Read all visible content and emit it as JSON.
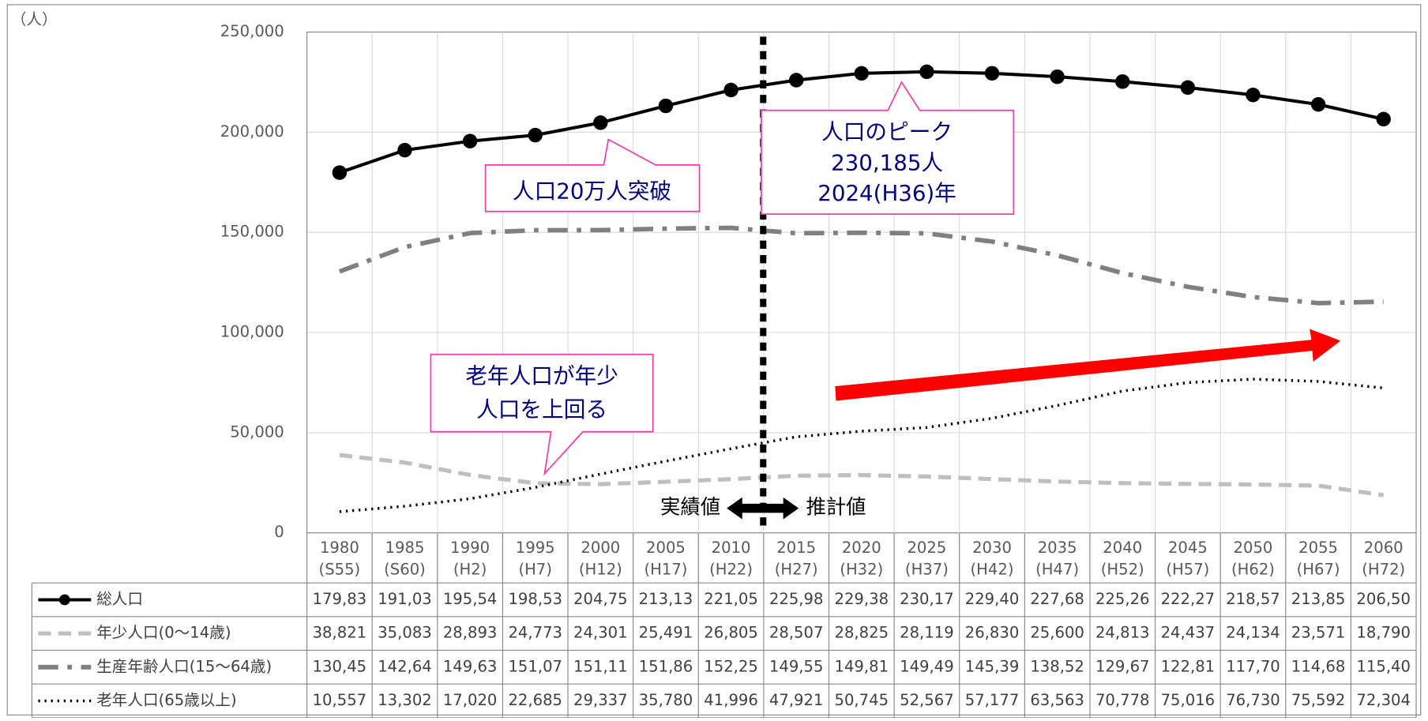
{
  "chart_data": {
    "type": "line",
    "y_unit": "（人）",
    "categories": [
      "1980",
      "1985",
      "1990",
      "1995",
      "2000",
      "2005",
      "2010",
      "2015",
      "2020",
      "2025",
      "2030",
      "2035",
      "2040",
      "2045",
      "2050",
      "2055",
      "2060"
    ],
    "category_subs": [
      "(S55)",
      "(S60)",
      "(H2)",
      "(H7)",
      "(H12)",
      "(H17)",
      "(H22)",
      "(H27)",
      "(H32)",
      "(H37)",
      "(H42)",
      "(H47)",
      "(H52)",
      "(H57)",
      "(H62)",
      "(H67)",
      "(H72)"
    ],
    "ylim": [
      0,
      250000
    ],
    "yticks": [
      0,
      {
        "value": 50000,
        "label": "50,000"
      },
      {
        "value": 100000,
        "label": "100,000"
      },
      {
        "value": 150000,
        "label": "150,000"
      },
      {
        "value": 200000,
        "label": "200,000"
      },
      {
        "value": 250000,
        "label": "250,000"
      }
    ],
    "grid": true,
    "series": [
      {
        "name": "総人口",
        "color": "#000000",
        "style": "solid-marker",
        "values": [
          179830,
          191030,
          195540,
          198530,
          204750,
          213130,
          221050,
          225980,
          229380,
          230170,
          229400,
          227680,
          225260,
          222270,
          218570,
          213850,
          206500
        ],
        "value_labels": [
          "179,83",
          "191,03",
          "195,54",
          "198,53",
          "204,75",
          "213,13",
          "221,05",
          "225,98",
          "229,38",
          "230,17",
          "229,40",
          "227,68",
          "225,26",
          "222,27",
          "218,57",
          "213,85",
          "206,50"
        ]
      },
      {
        "name": "年少人口(0～14歳)",
        "color": "#bfbfbf",
        "style": "dash",
        "values": [
          38821,
          35083,
          28893,
          24773,
          24301,
          25491,
          26805,
          28507,
          28825,
          28119,
          26830,
          25600,
          24813,
          24437,
          24134,
          23571,
          18790
        ],
        "value_labels": [
          "38,821",
          "35,083",
          "28,893",
          "24,773",
          "24,301",
          "25,491",
          "26,805",
          "28,507",
          "28,825",
          "28,119",
          "26,830",
          "25,600",
          "24,813",
          "24,437",
          "24,134",
          "23,571",
          "18,790"
        ]
      },
      {
        "name": "生産年齢人口(15～64歳)",
        "color": "#808080",
        "style": "dashdot",
        "values": [
          130450,
          142640,
          149630,
          151070,
          151110,
          151860,
          152250,
          149550,
          149810,
          149490,
          145390,
          138520,
          129670,
          122810,
          117700,
          114680,
          115400
        ],
        "value_labels": [
          "130,45",
          "142,64",
          "149,63",
          "151,07",
          "151,11",
          "151,86",
          "152,25",
          "149,55",
          "149,81",
          "149,49",
          "145,39",
          "138,52",
          "129,67",
          "122,81",
          "117,70",
          "114,68",
          "115,40"
        ]
      },
      {
        "name": "老年人口(65歳以上)",
        "color": "#000000",
        "style": "dot",
        "values": [
          10557,
          13302,
          17020,
          22685,
          29337,
          35780,
          41996,
          47921,
          50745,
          52567,
          57177,
          63563,
          70778,
          75016,
          76730,
          75592,
          72304
        ],
        "value_labels": [
          "10,557",
          "13,302",
          "17,020",
          "22,685",
          "29,337",
          "35,780",
          "41,996",
          "47,921",
          "50,745",
          "52,567",
          "57,177",
          "63,563",
          "70,778",
          "75,016",
          "76,730",
          "75,592",
          "72,304"
        ]
      }
    ],
    "annotations": [
      [
        "人口20万人突破"
      ],
      [
        "人口のピーク",
        "230,185人",
        "2024(H36)年"
      ],
      [
        "老年人口が年少",
        "人口を上回る"
      ]
    ],
    "actual_label": "実績値",
    "projection_label": "推計値"
  }
}
